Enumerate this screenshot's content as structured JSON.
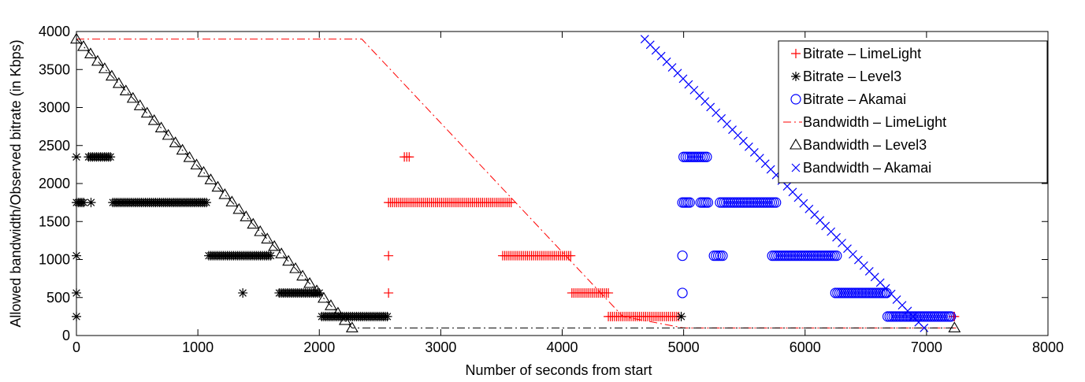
{
  "chart_data": {
    "type": "scatter",
    "title": "",
    "xlabel": "Number of seconds from start",
    "ylabel": "Allowed bandwidth/Observed bitrate (in Kbps)",
    "xlim": [
      0,
      8000
    ],
    "ylim": [
      0,
      4000
    ],
    "xticks": [
      "0",
      "1000",
      "2000",
      "3000",
      "4000",
      "5000",
      "6000",
      "7000",
      "8000"
    ],
    "yticks": [
      "0",
      "500",
      "1000",
      "1500",
      "2000",
      "2500",
      "3000",
      "3500",
      "4000"
    ],
    "grid": false,
    "legend_position": "top-right",
    "series": [
      {
        "name": "Bitrate – LimeLight",
        "marker": "plus",
        "color": "#ff0000",
        "line": "none",
        "segments": [
          {
            "x0": 2700,
            "x1": 2740,
            "y": 2350
          },
          {
            "x0": 2570,
            "x1": 3580,
            "y": 1750
          },
          {
            "x0": 3510,
            "x1": 4070,
            "y": 1050
          },
          {
            "x0": 4080,
            "x1": 4380,
            "y": 560
          },
          {
            "x0": 4380,
            "x1": 4960,
            "y": 250
          },
          {
            "x0": 7220,
            "x1": 7230,
            "y": 250
          }
        ],
        "points": [
          [
            2570,
            1050
          ],
          [
            2570,
            560
          ]
        ]
      },
      {
        "name": "Bitrate – Level3",
        "marker": "asterisk",
        "color": "#000000",
        "line": "none",
        "segments": [
          {
            "x0": 100,
            "x1": 280,
            "y": 2350
          },
          {
            "x0": 0,
            "x1": 60,
            "y": 1750
          },
          {
            "x0": 300,
            "x1": 1070,
            "y": 1750
          },
          {
            "x0": 1090,
            "x1": 1600,
            "y": 1050
          },
          {
            "x0": 1670,
            "x1": 2000,
            "y": 560
          },
          {
            "x0": 2020,
            "x1": 2560,
            "y": 250
          }
        ],
        "points": [
          [
            0,
            2350
          ],
          [
            120,
            1750
          ],
          [
            0,
            1050
          ],
          [
            0,
            560
          ],
          [
            0,
            250
          ],
          [
            1370,
            560
          ],
          [
            4980,
            250
          ]
        ]
      },
      {
        "name": "Bitrate – Akamai",
        "marker": "circle",
        "color": "#0000ff",
        "line": "none",
        "segments": [
          {
            "x0": 5000,
            "x1": 5190,
            "y": 2350
          },
          {
            "x0": 4990,
            "x1": 5050,
            "y": 1750
          },
          {
            "x0": 5140,
            "x1": 5200,
            "y": 1750
          },
          {
            "x0": 5300,
            "x1": 5760,
            "y": 1750
          },
          {
            "x0": 5250,
            "x1": 5320,
            "y": 1050
          },
          {
            "x0": 5730,
            "x1": 6260,
            "y": 1050
          },
          {
            "x0": 6250,
            "x1": 6670,
            "y": 560
          },
          {
            "x0": 6680,
            "x1": 7200,
            "y": 250
          }
        ],
        "points": [
          [
            4990,
            1050
          ],
          [
            4990,
            560
          ]
        ]
      },
      {
        "name": "Bandwidth – LimeLight",
        "marker": "none",
        "color": "#ff0000",
        "line": "dashdot",
        "x": [
          0,
          2350,
          4500,
          5000,
          7250
        ],
        "y": [
          3900,
          3900,
          250,
          100,
          100
        ]
      },
      {
        "name": "Bandwidth – Level3",
        "marker": "triangle",
        "color": "#000000",
        "line": "dashdot",
        "x": [
          0,
          2270,
          7230
        ],
        "y": [
          3900,
          100,
          100
        ]
      },
      {
        "name": "Bandwidth – Akamai",
        "marker": "x",
        "color": "#0000ff",
        "line": "none",
        "x": [
          4680,
          6980
        ],
        "y": [
          3900,
          100
        ]
      }
    ]
  }
}
